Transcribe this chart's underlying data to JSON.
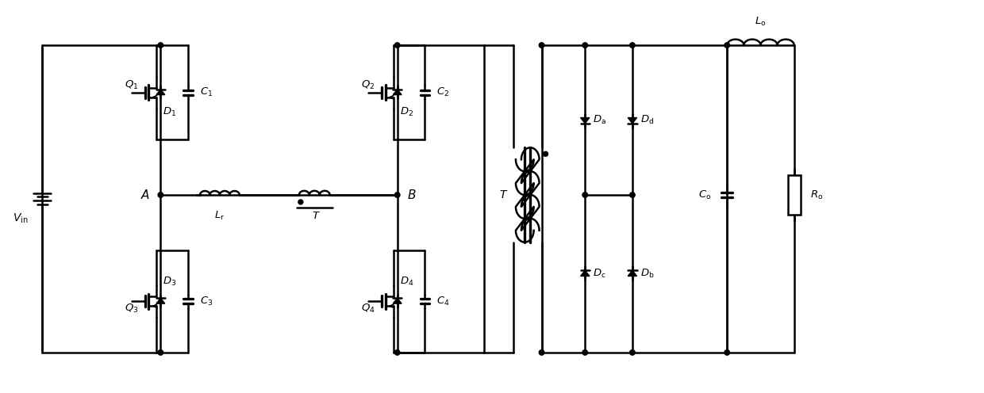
{
  "fig_width": 12.4,
  "fig_height": 4.96,
  "dpi": 100,
  "lw": 1.8,
  "lw_thick": 2.4,
  "color": "black"
}
